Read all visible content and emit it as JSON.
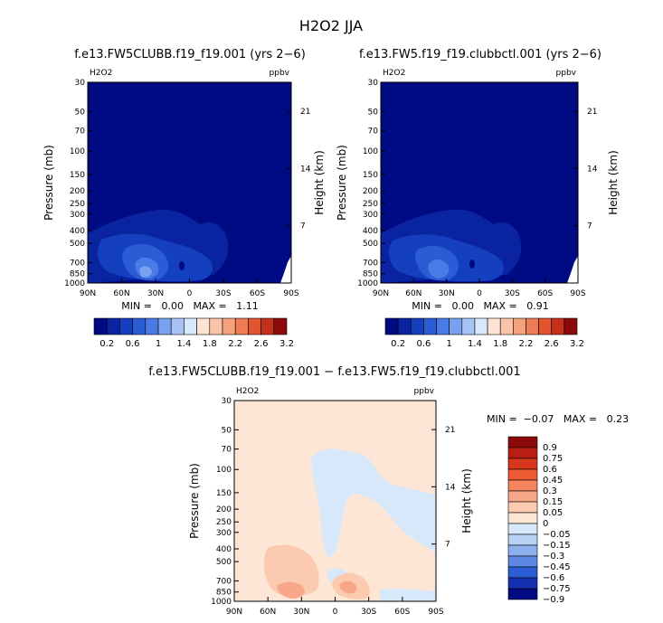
{
  "title": "H2O2 JJA",
  "chart_data": [
    {
      "type": "heatmap",
      "title": "f.e13.FW5CLUBB.f19_f19.001 (yrs 2−6)",
      "variable": "H2O2",
      "units": "ppbv",
      "ylabel": "Pressure (mb)",
      "y2label": "Height (km)",
      "xticks": [
        "90N",
        "60N",
        "30N",
        "0",
        "30S",
        "60S",
        "90S"
      ],
      "yticks": [
        "30",
        "50",
        "70",
        "100",
        "150",
        "200",
        "250",
        "300",
        "400",
        "500",
        "700",
        "850",
        "1000"
      ],
      "y2ticks": [
        "21",
        "14",
        "7"
      ],
      "xlim": [
        90,
        -90
      ],
      "ylim": [
        1000,
        30
      ],
      "y_scale": "log",
      "stats_text": "MIN =   0.00   MAX =   1.11",
      "min": 0.0,
      "max": 1.11,
      "colorbar_labels": [
        "0.2",
        "0.6",
        "1",
        "1.4",
        "1.8",
        "2.2",
        "2.6",
        "3.2"
      ],
      "levels": [
        0.2,
        0.4,
        0.6,
        0.8,
        1,
        1.2,
        1.4,
        1.6,
        1.8,
        2,
        2.2,
        2.4,
        2.6,
        2.8,
        3.2
      ]
    },
    {
      "type": "heatmap",
      "title": "f.e13.FW5.f19_f19.clubbctl.001 (yrs 2−6)",
      "variable": "H2O2",
      "units": "ppbv",
      "ylabel": "Pressure (mb)",
      "y2label": "Height (km)",
      "xticks": [
        "90N",
        "60N",
        "30N",
        "0",
        "30S",
        "60S",
        "90S"
      ],
      "yticks": [
        "30",
        "50",
        "70",
        "100",
        "150",
        "200",
        "250",
        "300",
        "400",
        "500",
        "700",
        "850",
        "1000"
      ],
      "y2ticks": [
        "21",
        "14",
        "7"
      ],
      "xlim": [
        90,
        -90
      ],
      "ylim": [
        1000,
        30
      ],
      "y_scale": "log",
      "stats_text": "MIN =   0.00   MAX =   0.91",
      "min": 0.0,
      "max": 0.91,
      "colorbar_labels": [
        "0.2",
        "0.6",
        "1",
        "1.4",
        "1.8",
        "2.2",
        "2.6",
        "3.2"
      ],
      "levels": [
        0.2,
        0.4,
        0.6,
        0.8,
        1,
        1.2,
        1.4,
        1.6,
        1.8,
        2,
        2.2,
        2.4,
        2.6,
        2.8,
        3.2
      ]
    },
    {
      "type": "heatmap",
      "title": "f.e13.FW5CLUBB.f19_f19.001 − f.e13.FW5.f19_f19.clubbctl.001",
      "variable": "H2O2",
      "units": "ppbv",
      "ylabel": "Pressure (mb)",
      "y2label": "Height (km)",
      "xticks": [
        "90N",
        "60N",
        "30N",
        "0",
        "30S",
        "60S",
        "90S"
      ],
      "yticks": [
        "30",
        "50",
        "70",
        "100",
        "150",
        "200",
        "250",
        "300",
        "400",
        "500",
        "700",
        "850",
        "1000"
      ],
      "y2ticks": [
        "21",
        "14",
        "7"
      ],
      "xlim": [
        90,
        -90
      ],
      "ylim": [
        1000,
        30
      ],
      "y_scale": "log",
      "stats_text": "MIN =  −0.07   MAX =   0.23",
      "min": -0.07,
      "max": 0.23,
      "colorbar_labels": [
        "0.9",
        "0.75",
        "0.6",
        "0.45",
        "0.3",
        "0.15",
        "0.05",
        "0",
        "−0.05",
        "−0.15",
        "−0.3",
        "−0.45",
        "−0.6",
        "−0.75",
        "−0.9"
      ]
    }
  ],
  "colors": {
    "seq": [
      "#000a82",
      "#0a23a0",
      "#1440c0",
      "#2a5cd6",
      "#4a7ae6",
      "#7aa0f0",
      "#a8c4f6",
      "#d8e8fb",
      "#fde3d2",
      "#fbc4a8",
      "#f6a27e",
      "#ee7c55",
      "#e0542e",
      "#c4301a",
      "#8c0a0a"
    ],
    "div": [
      "#8c0a0a",
      "#b81e12",
      "#d8361c",
      "#ee5a34",
      "#f6845e",
      "#f8a888",
      "#fccaae",
      "#fde6d6",
      "#d8e8fb",
      "#b8d2f6",
      "#8cb0ee",
      "#5c88e4",
      "#2a5cd6",
      "#1430b0",
      "#000a82"
    ],
    "bg_dark": "#000a82",
    "bg_light_pos": "#fde6d6",
    "bg_light_neg": "#d8e8fb"
  }
}
